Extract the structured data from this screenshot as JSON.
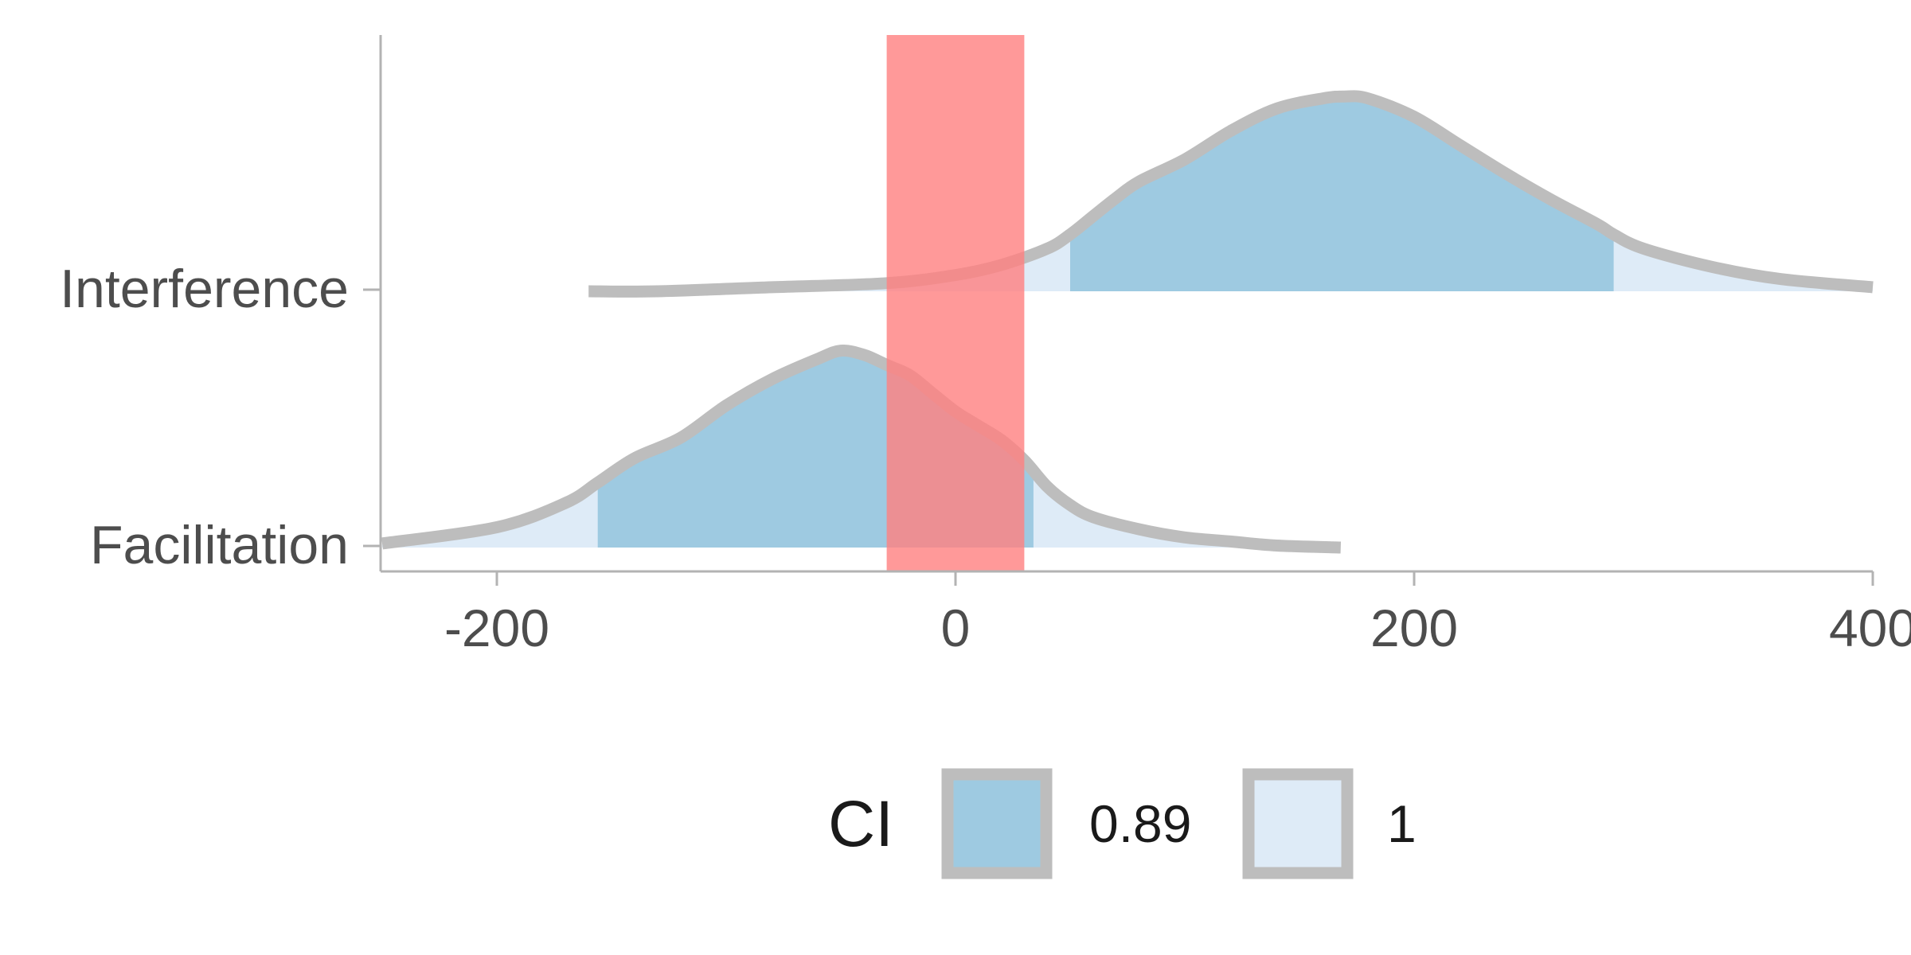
{
  "chart_data": {
    "type": "area",
    "subtype": "ridgeline-density",
    "categories": [
      "Facilitation",
      "Interference"
    ],
    "xlim": [
      -250,
      400
    ],
    "x_ticks": [
      -200,
      0,
      200,
      400
    ],
    "x_tick_labels": [
      "-200",
      "0",
      "200",
      "400"
    ],
    "rope": {
      "from": -30,
      "to": 30,
      "color": "#ff7f7f"
    },
    "series": [
      {
        "category": "Facilitation",
        "ci_range": [
          -156,
          34
        ],
        "x": [
          -250,
          -200,
          -170,
          -156,
          -140,
          -120,
          -100,
          -80,
          -60,
          -50,
          -40,
          -30,
          -20,
          -10,
          0,
          10,
          20,
          30,
          40,
          50,
          60,
          80,
          100,
          120,
          140,
          168
        ],
        "density": [
          0.02,
          0.1,
          0.22,
          0.32,
          0.44,
          0.54,
          0.7,
          0.83,
          0.93,
          0.97,
          0.95,
          0.9,
          0.85,
          0.76,
          0.67,
          0.6,
          0.53,
          0.43,
          0.3,
          0.21,
          0.15,
          0.09,
          0.05,
          0.03,
          0.01,
          0.0
        ]
      },
      {
        "category": "Interference",
        "ci_range": [
          50,
          287
        ],
        "x": [
          -160,
          -130,
          -80,
          -30,
          0,
          20,
          40,
          50,
          60,
          70,
          80,
          100,
          120,
          140,
          160,
          170,
          180,
          200,
          220,
          240,
          260,
          280,
          287,
          300,
          330,
          360,
          400
        ],
        "density": [
          0.0,
          0.0,
          0.02,
          0.04,
          0.08,
          0.13,
          0.21,
          0.28,
          0.37,
          0.46,
          0.54,
          0.65,
          0.79,
          0.9,
          0.95,
          0.96,
          0.95,
          0.86,
          0.72,
          0.58,
          0.45,
          0.33,
          0.28,
          0.21,
          0.12,
          0.06,
          0.02
        ]
      }
    ],
    "legend": {
      "title": "CI",
      "position": "bottom",
      "items": [
        {
          "label": "0.89",
          "color": "#9ecae1"
        },
        {
          "label": "1",
          "color": "#deebf7"
        }
      ]
    },
    "outline_color": "#bdbdbd",
    "grid": false
  }
}
